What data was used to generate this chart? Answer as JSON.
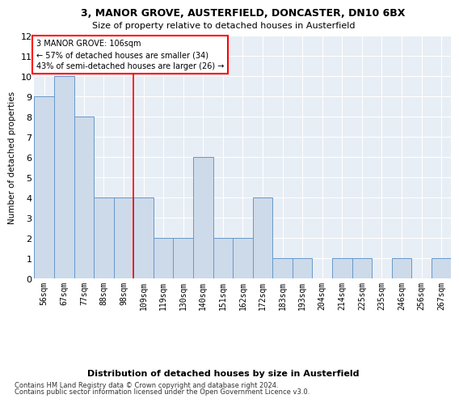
{
  "title": "3, MANOR GROVE, AUSTERFIELD, DONCASTER, DN10 6BX",
  "subtitle": "Size of property relative to detached houses in Austerfield",
  "xlabel_bottom": "Distribution of detached houses by size in Austerfield",
  "ylabel": "Number of detached properties",
  "categories": [
    "56sqm",
    "67sqm",
    "77sqm",
    "88sqm",
    "98sqm",
    "109sqm",
    "119sqm",
    "130sqm",
    "140sqm",
    "151sqm",
    "162sqm",
    "172sqm",
    "183sqm",
    "193sqm",
    "204sqm",
    "214sqm",
    "225sqm",
    "235sqm",
    "246sqm",
    "256sqm",
    "267sqm"
  ],
  "values": [
    9,
    10,
    8,
    4,
    4,
    4,
    2,
    2,
    6,
    2,
    2,
    4,
    1,
    1,
    0,
    1,
    1,
    0,
    1,
    0,
    1
  ],
  "bar_color": "#cddaea",
  "bar_edge_color": "#6699cc",
  "background_color": "#e8eef5",
  "ylim": [
    0,
    12
  ],
  "yticks": [
    0,
    1,
    2,
    3,
    4,
    5,
    6,
    7,
    8,
    9,
    10,
    11,
    12
  ],
  "red_line_x": 4.5,
  "annotation_line1": "3 MANOR GROVE: 106sqm",
  "annotation_line2": "← 57% of detached houses are smaller (34)",
  "annotation_line3": "43% of semi-detached houses are larger (26) →",
  "footer_line1": "Contains HM Land Registry data © Crown copyright and database right 2024.",
  "footer_line2": "Contains public sector information licensed under the Open Government Licence v3.0."
}
